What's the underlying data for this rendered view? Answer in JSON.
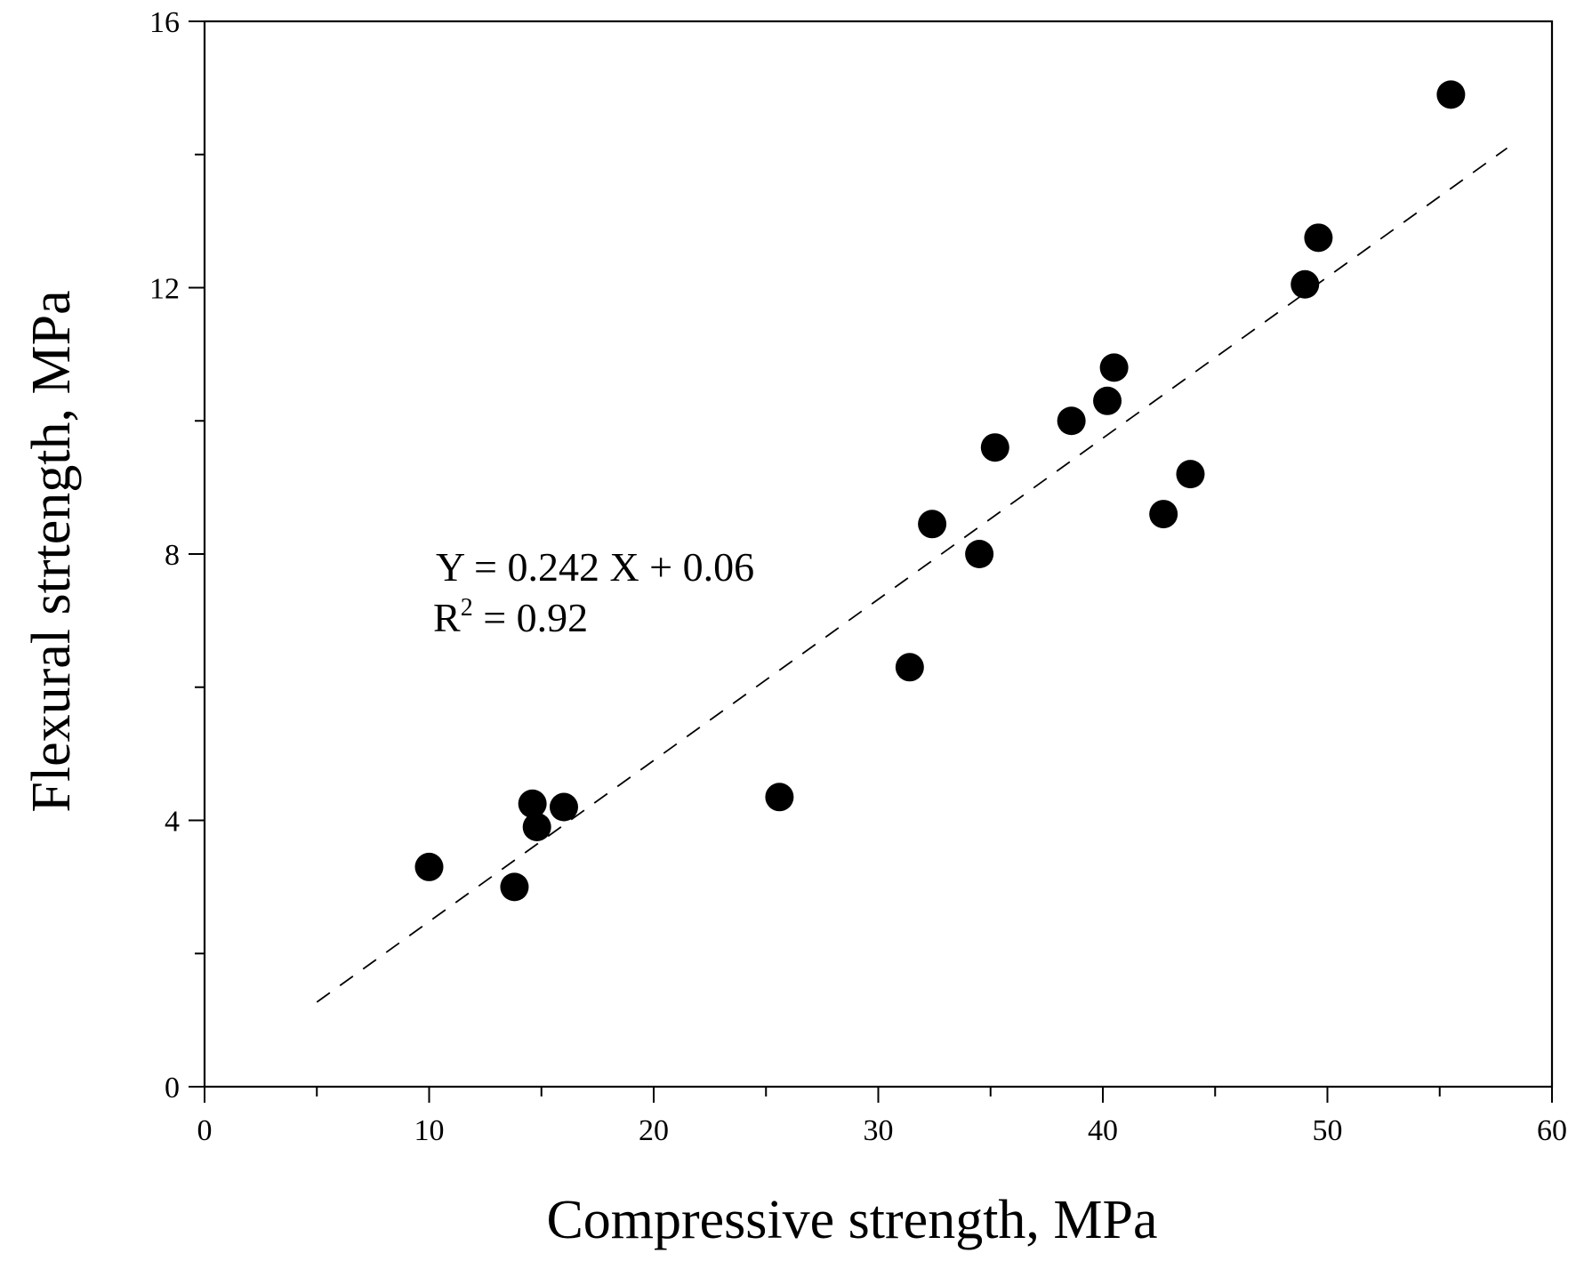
{
  "chart_data": {
    "type": "scatter",
    "title": "",
    "xlabel": "Compressive strength, MPa",
    "ylabel": "Flexural strtength, MPa",
    "xlim": [
      0,
      60
    ],
    "ylim": [
      0,
      16
    ],
    "x_ticks_major": [
      0,
      10,
      20,
      30,
      40,
      50,
      60
    ],
    "x_ticks_minor": [
      5,
      15,
      25,
      35,
      45,
      55
    ],
    "y_ticks_major": [
      0,
      4,
      8,
      12,
      16
    ],
    "y_ticks_minor": [
      2,
      6,
      10,
      14
    ],
    "x_tick_labels": [
      "0",
      "10",
      "20",
      "30",
      "40",
      "50",
      "60"
    ],
    "y_tick_labels": [
      "0",
      "4",
      "8",
      "12",
      "16"
    ],
    "grid": false,
    "series": [
      {
        "name": "data",
        "marker": "filled-circle",
        "color": "#000000",
        "points": [
          {
            "x": 10.0,
            "y": 3.3
          },
          {
            "x": 13.8,
            "y": 3.0
          },
          {
            "x": 14.6,
            "y": 4.25
          },
          {
            "x": 14.8,
            "y": 3.9
          },
          {
            "x": 16.0,
            "y": 4.2
          },
          {
            "x": 25.6,
            "y": 4.35
          },
          {
            "x": 31.4,
            "y": 6.3
          },
          {
            "x": 32.4,
            "y": 8.45
          },
          {
            "x": 34.5,
            "y": 8.0
          },
          {
            "x": 35.2,
            "y": 9.6
          },
          {
            "x": 38.6,
            "y": 10.0
          },
          {
            "x": 40.2,
            "y": 10.3
          },
          {
            "x": 40.5,
            "y": 10.8
          },
          {
            "x": 42.7,
            "y": 8.6
          },
          {
            "x": 43.9,
            "y": 9.2
          },
          {
            "x": 49.0,
            "y": 12.05
          },
          {
            "x": 49.6,
            "y": 12.75
          },
          {
            "x": 55.5,
            "y": 14.9
          }
        ]
      }
    ],
    "fit_line": {
      "style": "dashed",
      "color": "#000000",
      "slope": 0.242,
      "intercept": 0.06,
      "x_range": [
        5,
        58
      ]
    },
    "annotations": {
      "equation": "Y = 0.242 X + 0.06",
      "r2_prefix": "R",
      "r2_superscript": "2",
      "r2_suffix": " = 0.92"
    }
  }
}
